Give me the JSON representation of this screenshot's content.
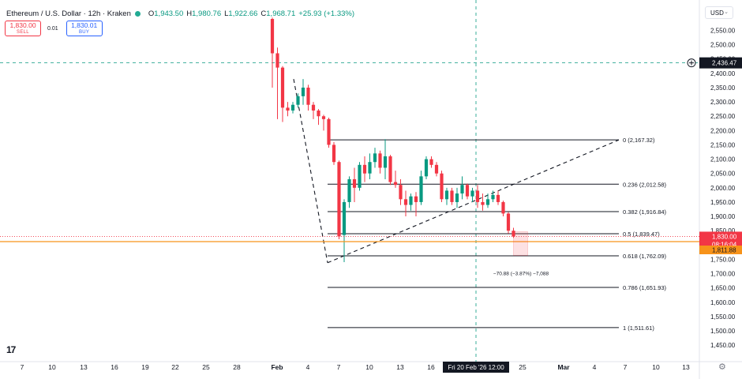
{
  "header": {
    "title": "Ethereum / U.S. Dollar · 12h · Kraken",
    "open_label": "O",
    "open": "1,943.50",
    "high_label": "H",
    "high": "1,980.76",
    "low_label": "L",
    "low": "1,922.66",
    "close_label": "C",
    "close": "1,968.71",
    "change": "+25.93 (+1.33%)"
  },
  "trade": {
    "sell_price": "1,830.00",
    "sell_label": "SELL",
    "spread": "0.01",
    "buy_price": "1,830.01",
    "buy_label": "BUY"
  },
  "currency": "USD",
  "colors": {
    "up": "#089981",
    "down": "#f23645",
    "accent": "#2962ff",
    "orange": "#f7931a"
  },
  "icons": [
    "chevron-down-icon",
    "plus-circle-icon",
    "tradingview-logo-icon",
    "gear-icon"
  ],
  "price_axis": {
    "ticks": [
      "2,550.00",
      "2,500.00",
      "2,450.00",
      "2,400.00",
      "2,350.00",
      "2,300.00",
      "2,250.00",
      "2,200.00",
      "2,150.00",
      "2,100.00",
      "2,050.00",
      "2,000.00",
      "1,950.00",
      "1,900.00",
      "1,850.00",
      "1,800.00",
      "1,750.00",
      "1,700.00",
      "1,650.00",
      "1,600.00",
      "1,550.00",
      "1,500.00",
      "1,450.00"
    ],
    "crosshair_price": "2,436.47",
    "current_price": "1,830.00",
    "countdown": "08:16:04",
    "target_price": "1,811.88"
  },
  "time_axis": {
    "ticks": [
      "7",
      "10",
      "13",
      "16",
      "19",
      "22",
      "25",
      "28",
      "Feb",
      "4",
      "7",
      "10",
      "13",
      "16",
      "19",
      "22",
      "25",
      "Mar",
      "4",
      "7",
      "10",
      "13"
    ],
    "crosshair_time": "Fri 20 Feb '26   12:00"
  },
  "fib_levels": [
    {
      "ratio": "0",
      "price": "2,167.32",
      "label": "0 (2,167.32)"
    },
    {
      "ratio": "0.236",
      "price": "2,012.58",
      "label": "0.236 (2,012.58)"
    },
    {
      "ratio": "0.382",
      "price": "1,916.84",
      "label": "0.382 (1,916.84)"
    },
    {
      "ratio": "0.5",
      "price": "1,839.47",
      "label": "0.5 (1,839.47)"
    },
    {
      "ratio": "0.618",
      "price": "1,762.09",
      "label": "0.618 (1,762.09)"
    },
    {
      "ratio": "0.786",
      "price": "1,651.93",
      "label": "0.786 (1,651.93)"
    },
    {
      "ratio": "1",
      "price": "1,511.61",
      "label": "1 (1,511.61)"
    }
  ],
  "measure_label": "−70.88 (−3.87%) −7,088",
  "candles": [
    {
      "o": 2590,
      "h": 2595,
      "l": 2350,
      "c": 2470
    },
    {
      "o": 2470,
      "h": 2490,
      "l": 2240,
      "c": 2420
    },
    {
      "o": 2420,
      "h": 2425,
      "l": 2230,
      "c": 2280
    },
    {
      "o": 2280,
      "h": 2300,
      "l": 2250,
      "c": 2270
    },
    {
      "o": 2270,
      "h": 2300,
      "l": 2260,
      "c": 2290
    },
    {
      "o": 2290,
      "h": 2330,
      "l": 2280,
      "c": 2320
    },
    {
      "o": 2320,
      "h": 2380,
      "l": 2290,
      "c": 2350
    },
    {
      "o": 2350,
      "h": 2360,
      "l": 2270,
      "c": 2290
    },
    {
      "o": 2290,
      "h": 2300,
      "l": 2240,
      "c": 2270
    },
    {
      "o": 2270,
      "h": 2275,
      "l": 2220,
      "c": 2250
    },
    {
      "o": 2250,
      "h": 2255,
      "l": 2200,
      "c": 2240
    },
    {
      "o": 2240,
      "h": 2245,
      "l": 2140,
      "c": 2150
    },
    {
      "o": 2150,
      "h": 2160,
      "l": 2080,
      "c": 2090
    },
    {
      "o": 2090,
      "h": 2095,
      "l": 1820,
      "c": 1830
    },
    {
      "o": 1835,
      "h": 1960,
      "l": 1740,
      "c": 1950
    },
    {
      "o": 1950,
      "h": 2040,
      "l": 1930,
      "c": 2030
    },
    {
      "o": 2030,
      "h": 2070,
      "l": 1950,
      "c": 2000
    },
    {
      "o": 2000,
      "h": 2090,
      "l": 1990,
      "c": 2080
    },
    {
      "o": 2080,
      "h": 2110,
      "l": 2020,
      "c": 2050
    },
    {
      "o": 2050,
      "h": 2120,
      "l": 2030,
      "c": 2090
    },
    {
      "o": 2090,
      "h": 2140,
      "l": 2070,
      "c": 2120
    },
    {
      "o": 2120,
      "h": 2130,
      "l": 2050,
      "c": 2070
    },
    {
      "o": 2070,
      "h": 2170,
      "l": 2030,
      "c": 2110
    },
    {
      "o": 2110,
      "h": 2115,
      "l": 2010,
      "c": 2020
    },
    {
      "o": 2020,
      "h": 2060,
      "l": 2000,
      "c": 2010
    },
    {
      "o": 2010,
      "h": 2030,
      "l": 1940,
      "c": 1960
    },
    {
      "o": 1960,
      "h": 1990,
      "l": 1900,
      "c": 1940
    },
    {
      "o": 1940,
      "h": 1980,
      "l": 1920,
      "c": 1970
    },
    {
      "o": 1970,
      "h": 1985,
      "l": 1900,
      "c": 1950
    },
    {
      "o": 1950,
      "h": 2060,
      "l": 1940,
      "c": 2040
    },
    {
      "o": 2040,
      "h": 2110,
      "l": 2030,
      "c": 2100
    },
    {
      "o": 2100,
      "h": 2110,
      "l": 2070,
      "c": 2080
    },
    {
      "o": 2080,
      "h": 2090,
      "l": 2040,
      "c": 2050
    },
    {
      "o": 2050,
      "h": 2060,
      "l": 1950,
      "c": 1960
    },
    {
      "o": 1960,
      "h": 2000,
      "l": 1940,
      "c": 1990
    },
    {
      "o": 1990,
      "h": 2000,
      "l": 1940,
      "c": 1950
    },
    {
      "o": 1950,
      "h": 2000,
      "l": 1930,
      "c": 1980
    },
    {
      "o": 1980,
      "h": 2040,
      "l": 1960,
      "c": 2010
    },
    {
      "o": 2010,
      "h": 2015,
      "l": 1960,
      "c": 1970
    },
    {
      "o": 1970,
      "h": 2000,
      "l": 1950,
      "c": 1990
    },
    {
      "o": 1990,
      "h": 2010,
      "l": 1930,
      "c": 1950
    },
    {
      "o": 1950,
      "h": 1980,
      "l": 1920,
      "c": 1940
    },
    {
      "o": 1940,
      "h": 1980,
      "l": 1930,
      "c": 1960
    },
    {
      "o": 1960,
      "h": 1990,
      "l": 1950,
      "c": 1975
    },
    {
      "o": 1975,
      "h": 1990,
      "l": 1940,
      "c": 1950
    },
    {
      "o": 1950,
      "h": 1955,
      "l": 1900,
      "c": 1910
    },
    {
      "o": 1910,
      "h": 1915,
      "l": 1840,
      "c": 1850
    },
    {
      "o": 1850,
      "h": 1860,
      "l": 1825,
      "c": 1830
    }
  ]
}
